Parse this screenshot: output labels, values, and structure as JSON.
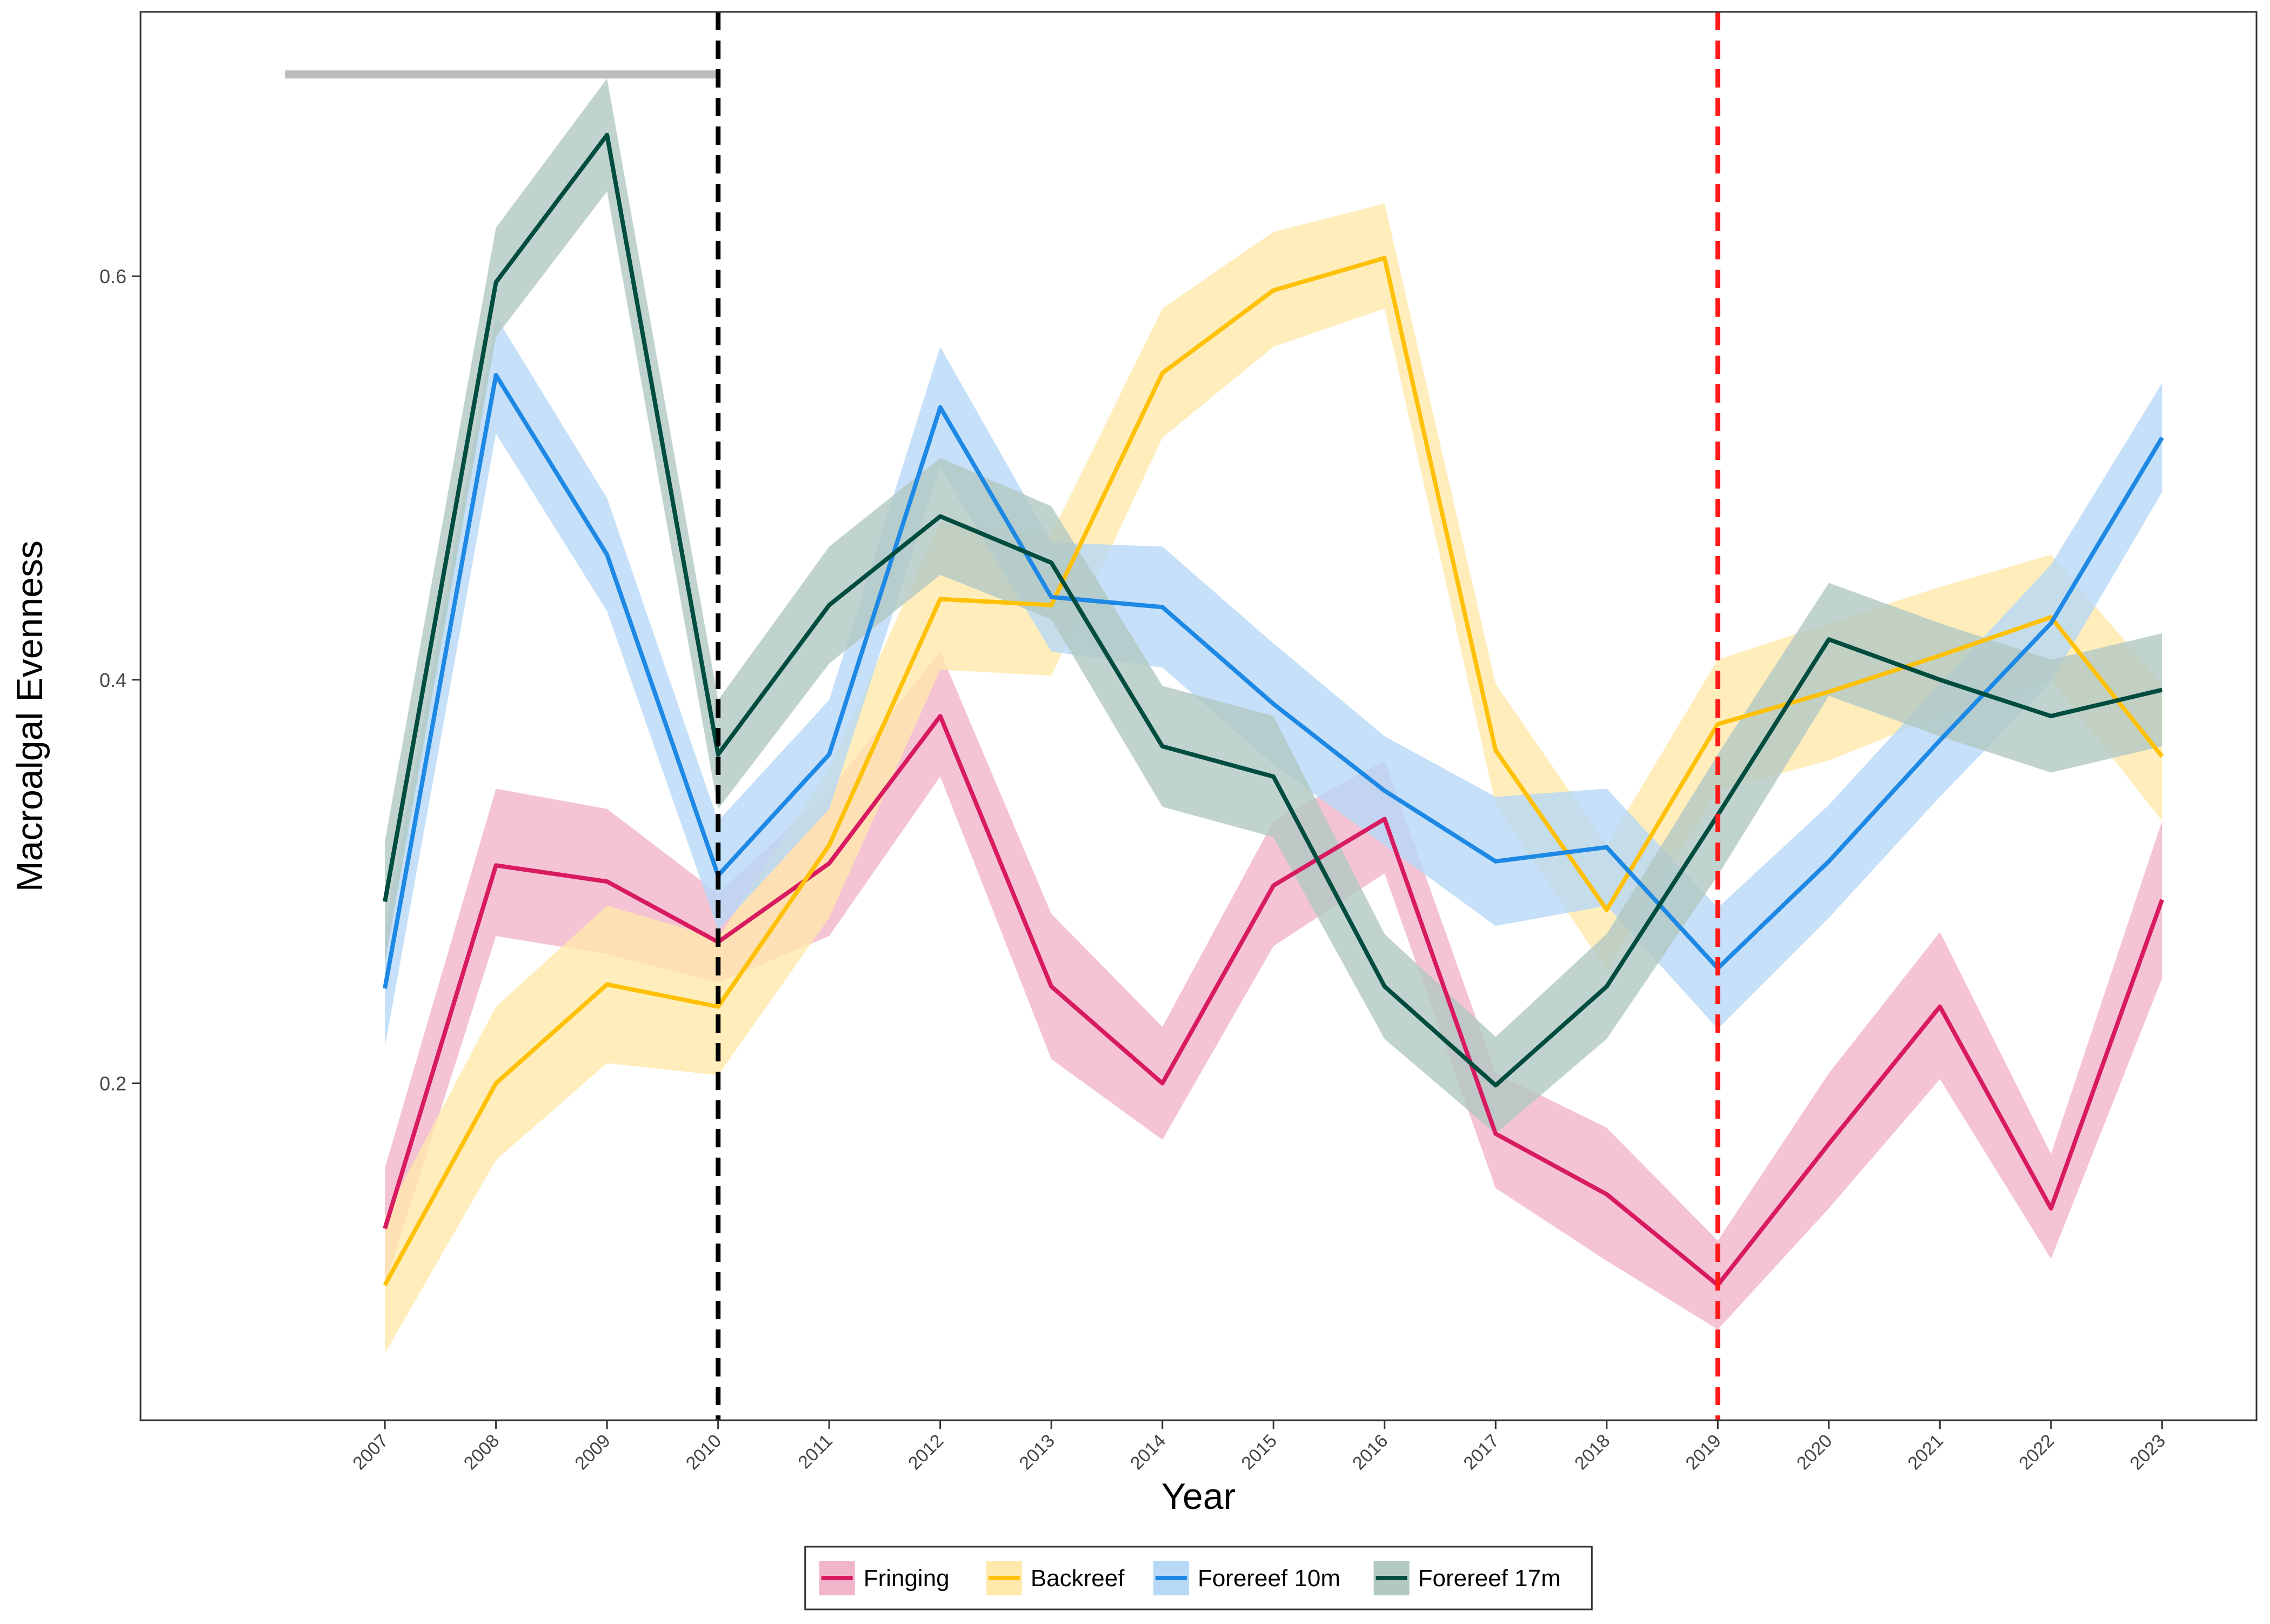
{
  "chart_data": {
    "type": "line",
    "title": "",
    "xlabel": "Year",
    "ylabel": "Macroalgal Evenness",
    "x": [
      2007,
      2008,
      2009,
      2010,
      2011,
      2012,
      2013,
      2014,
      2015,
      2016,
      2017,
      2018,
      2019,
      2020,
      2021,
      2022,
      2023
    ],
    "x_tick_labels": [
      "2007",
      "2008",
      "2009",
      "2010",
      "2011",
      "2012",
      "2013",
      "2014",
      "2015",
      "2016",
      "2017",
      "2018",
      "2019",
      "2020",
      "2021",
      "2022",
      "2023"
    ],
    "xlim": [
      2004.8,
      2023.85
    ],
    "ylim": [
      0.033,
      0.731
    ],
    "y_ticks": [
      0.2,
      0.4,
      0.6
    ],
    "y_tick_labels": [
      "0.2",
      "0.4",
      "0.6"
    ],
    "grid": false,
    "legend_position": "bottom",
    "reference_lines": [
      {
        "x": 2010,
        "color": "#000000",
        "style": "dashed"
      },
      {
        "x": 2019,
        "color": "#ff1a1a",
        "style": "dashed"
      }
    ],
    "reference_segment": {
      "x_start": 2006.1,
      "x_end": 2010,
      "y": 0.7,
      "color": "#bdbdbd"
    },
    "series": [
      {
        "name": "Fringing",
        "color": "#d81b60",
        "fill": "#f1b5cb",
        "values": [
          0.128,
          0.308,
          0.3,
          0.27,
          0.309,
          0.382,
          0.248,
          0.2,
          0.298,
          0.331,
          0.175,
          0.145,
          0.1,
          0.17,
          0.238,
          0.138,
          0.291
        ],
        "lower": [
          0.1,
          0.273,
          0.264,
          0.25,
          0.273,
          0.352,
          0.212,
          0.172,
          0.268,
          0.304,
          0.148,
          0.112,
          0.078,
          0.138,
          0.202,
          0.113,
          0.252
        ],
        "upper": [
          0.158,
          0.346,
          0.336,
          0.294,
          0.345,
          0.414,
          0.284,
          0.228,
          0.33,
          0.36,
          0.205,
          0.178,
          0.122,
          0.205,
          0.275,
          0.165,
          0.33
        ]
      },
      {
        "name": "Backreef",
        "color": "#ffc107",
        "fill": "#ffe9ab",
        "values": [
          0.1,
          0.2,
          0.249,
          0.238,
          0.318,
          0.44,
          0.437,
          0.552,
          0.593,
          0.609,
          0.365,
          0.286,
          0.378,
          0.394,
          0.412,
          0.431,
          0.362
        ],
        "lower": [
          0.066,
          0.162,
          0.21,
          0.204,
          0.282,
          0.405,
          0.402,
          0.52,
          0.565,
          0.584,
          0.338,
          0.256,
          0.345,
          0.36,
          0.382,
          0.4,
          0.33
        ],
        "upper": [
          0.134,
          0.238,
          0.288,
          0.272,
          0.356,
          0.478,
          0.472,
          0.584,
          0.622,
          0.636,
          0.398,
          0.318,
          0.41,
          0.428,
          0.446,
          0.462,
          0.398
        ]
      },
      {
        "name": "Forereef 10m",
        "color": "#1e88e5",
        "fill": "#b7d8f6",
        "values": [
          0.247,
          0.551,
          0.462,
          0.303,
          0.363,
          0.535,
          0.441,
          0.436,
          0.388,
          0.345,
          0.31,
          0.317,
          0.257,
          0.31,
          0.37,
          0.428,
          0.52
        ],
        "lower": [
          0.218,
          0.522,
          0.434,
          0.276,
          0.336,
          0.505,
          0.414,
          0.406,
          0.358,
          0.318,
          0.278,
          0.288,
          0.227,
          0.282,
          0.342,
          0.399,
          0.493
        ],
        "upper": [
          0.276,
          0.58,
          0.49,
          0.33,
          0.39,
          0.565,
          0.468,
          0.466,
          0.418,
          0.372,
          0.342,
          0.346,
          0.287,
          0.338,
          0.398,
          0.457,
          0.547
        ]
      },
      {
        "name": "Forereef 17m",
        "color": "#004d40",
        "fill": "#b2c8c3",
        "values": [
          0.29,
          0.597,
          0.67,
          0.363,
          0.437,
          0.481,
          0.458,
          0.367,
          0.352,
          0.248,
          0.199,
          0.248,
          0.333,
          0.42,
          0.4,
          0.382,
          0.395
        ],
        "lower": [
          0.26,
          0.57,
          0.642,
          0.336,
          0.408,
          0.452,
          0.43,
          0.337,
          0.322,
          0.222,
          0.175,
          0.222,
          0.303,
          0.392,
          0.372,
          0.354,
          0.367
        ],
        "upper": [
          0.32,
          0.624,
          0.698,
          0.39,
          0.466,
          0.51,
          0.486,
          0.397,
          0.382,
          0.274,
          0.223,
          0.274,
          0.363,
          0.448,
          0.428,
          0.41,
          0.423
        ]
      }
    ]
  }
}
